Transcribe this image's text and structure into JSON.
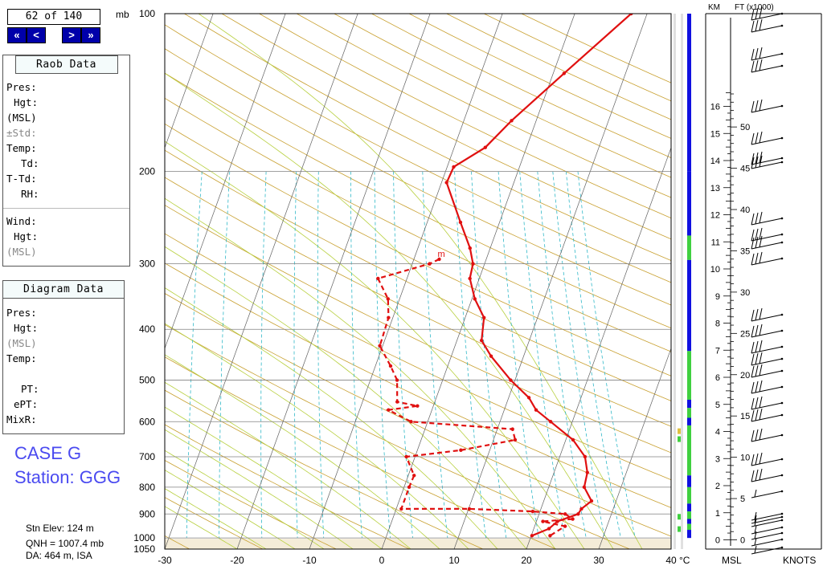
{
  "navigation": {
    "counter": "62 of 140",
    "first": "«",
    "prev": "<",
    "next": ">",
    "last": "»"
  },
  "units": {
    "pressure": "mb",
    "temperature": "°C",
    "km": "KM",
    "ft": "FT (x1000)",
    "msl": "MSL",
    "knots": "KNOTS"
  },
  "raob_panel": {
    "title": "Raob Data",
    "fields": [
      "Pres:",
      "Hgt:",
      "(MSL)",
      "±Std:",
      "Temp:",
      "Td:",
      "T-Td:",
      "RH:",
      "Wind:",
      "Hgt:",
      "(MSL)"
    ]
  },
  "diagram_panel": {
    "title": "Diagram Data",
    "fields": [
      "Pres:",
      "Hgt:",
      "(MSL)",
      "Temp:",
      "PT:",
      "ePT:",
      "MixR:"
    ]
  },
  "case": {
    "name": "CASE G",
    "station": "Station: GGG",
    "elevation": "Stn Elev: 124 m",
    "qnh": "QNH = 1007.4 mb",
    "da": "DA: 464 m, ISA"
  },
  "colors": {
    "trace": "#e01010",
    "isobar": "#808080",
    "isotherm": "#606060",
    "dry_adiabat": "#c8a030",
    "moist_adiabat": "#b8d040",
    "mixing_ratio": "#30b8c8",
    "cloud": "#1010e0",
    "clear": "#40d040",
    "accent": "#e0c040"
  },
  "chart_data": {
    "type": "line",
    "subtype": "skew-t log-p",
    "pressure_levels": [
      100,
      200,
      300,
      400,
      500,
      600,
      700,
      800,
      900,
      1000,
      1050
    ],
    "temperature_ticks": [
      -30,
      -20,
      -10,
      0,
      10,
      20,
      30,
      40
    ],
    "temperature_range": [
      -30,
      40
    ],
    "pressure_range": [
      100,
      1050
    ],
    "series": [
      {
        "kind": "temperature",
        "points": [
          [
            100,
            7.8
          ],
          [
            130,
            1.5
          ],
          [
            160,
            -3.4
          ],
          [
            180,
            -5.7
          ],
          [
            196,
            -9.1
          ],
          [
            210,
            -9.3
          ],
          [
            250,
            -5.4
          ],
          [
            280,
            -2.8
          ],
          [
            300,
            -1.6
          ],
          [
            320,
            -1.3
          ],
          [
            350,
            0.4
          ],
          [
            380,
            2.6
          ],
          [
            420,
            3.4
          ],
          [
            450,
            5.5
          ],
          [
            500,
            9.4
          ],
          [
            540,
            12.8
          ],
          [
            570,
            14.4
          ],
          [
            600,
            17.0
          ],
          [
            650,
            21.0
          ],
          [
            700,
            23.5
          ],
          [
            750,
            24.6
          ],
          [
            800,
            24.9
          ],
          [
            850,
            26.6
          ],
          [
            880,
            25.6
          ],
          [
            900,
            25.4
          ],
          [
            930,
            22.9
          ],
          [
            960,
            22.1
          ],
          [
            990,
            20.1
          ]
        ]
      },
      {
        "kind": "dewpoint",
        "label": "m",
        "points": [
          [
            294,
            -6.5
          ],
          [
            300,
            -7.6
          ],
          [
            320,
            -14.0
          ],
          [
            350,
            -11.6
          ],
          [
            380,
            -10.6
          ],
          [
            430,
            -10.4
          ],
          [
            470,
            -7.9
          ],
          [
            500,
            -6.3
          ],
          [
            550,
            -5.2
          ],
          [
            560,
            -2.2
          ],
          [
            570,
            -6.0
          ],
          [
            600,
            -2.3
          ],
          [
            620,
            12.1
          ],
          [
            650,
            13.0
          ],
          [
            680,
            6.0
          ],
          [
            700,
            -1.2
          ],
          [
            760,
            0.8
          ],
          [
            800,
            0.7
          ],
          [
            880,
            0.7
          ],
          [
            880,
            10.1
          ],
          [
            890,
            19.0
          ],
          [
            900,
            23.6
          ],
          [
            920,
            24.9
          ],
          [
            930,
            20.9
          ],
          [
            950,
            24.2
          ],
          [
            990,
            22.6
          ]
        ]
      }
    ],
    "km_ticks": [
      0,
      1,
      2,
      3,
      4,
      5,
      6,
      7,
      8,
      9,
      10,
      11,
      12,
      13,
      14,
      15,
      16
    ],
    "ft_ticks": [
      0,
      5,
      10,
      15,
      20,
      25,
      30,
      35,
      40,
      45,
      50
    ]
  }
}
